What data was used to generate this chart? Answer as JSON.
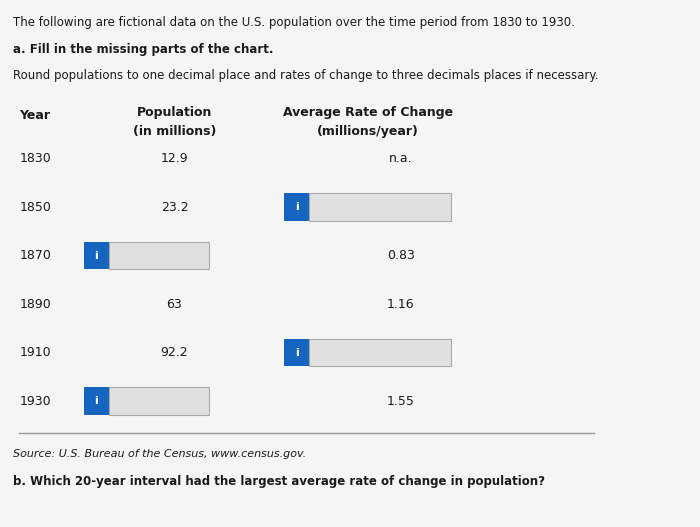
{
  "title_line1": "The following are fictional data on the U.S. population over the time period from 1830 to 1930.",
  "title_line2": "a. Fill in the missing parts of the chart.",
  "title_line3": "Round populations to one decimal place and rates of change to three decimals places if necessary.",
  "col1_header1": "Population",
  "col1_header2": "(in millions)",
  "col2_header1": "Average Rate of Change",
  "col2_header2": "(millions/year)",
  "row_label": "Year",
  "years": [
    "1830",
    "1850",
    "1870",
    "1890",
    "1910",
    "1930"
  ],
  "populations": [
    "12.9",
    "23.2",
    null,
    "63",
    "92.2",
    null
  ],
  "rates": [
    "n.a.",
    null,
    "0.83",
    "1.16",
    null,
    "1.55"
  ],
  "pop_has_input_box": [
    false,
    false,
    true,
    false,
    false,
    true
  ],
  "rate_has_input_box": [
    false,
    true,
    false,
    false,
    true,
    false
  ],
  "source_text": "Source: U.S. Bureau of the Census, www.census.gov.",
  "part_b": "b. Which 20-year interval had the largest average rate of change in population?",
  "bg_color": "#f5f5f5",
  "box_color": "#1565c0",
  "input_bg": "#e0e0e0",
  "text_color": "#1a1a1a"
}
